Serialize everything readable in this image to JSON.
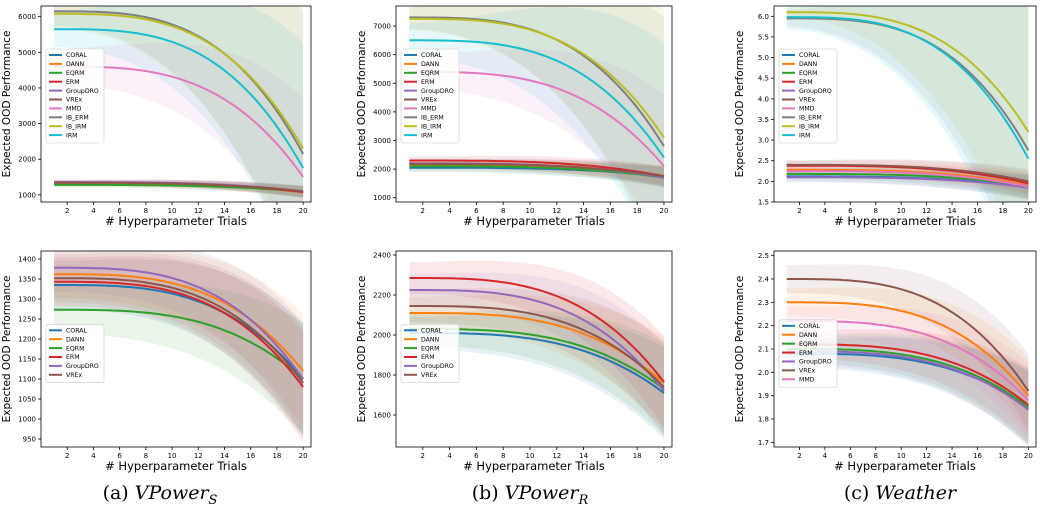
{
  "captions": [
    {
      "label": "(a)",
      "main": "VPower",
      "sub": "S"
    },
    {
      "label": "(b)",
      "main": "VPower",
      "sub": "R"
    },
    {
      "label": "(c)",
      "main": "Weather",
      "sub": ""
    }
  ],
  "colors": {
    "CORAL": "#1f77b4",
    "DANN": "#ff7f0e",
    "EQRM": "#2ca02c",
    "ERM": "#d62728",
    "GroupDRO": "#9467bd",
    "VREx": "#8c564b",
    "MMD": "#e377c2",
    "IB_ERM": "#7f7f7f",
    "IB_IRM": "#bcbd22",
    "IRM": "#17becf"
  },
  "chart_data": [
    {
      "type": "line",
      "xlabel": "# Hyperparameter Trials",
      "ylabel": "Expected OOD Performance",
      "xlim": [
        0,
        20.6
      ],
      "ylim": [
        800,
        6300
      ],
      "xticks": [
        2,
        4,
        6,
        8,
        10,
        12,
        14,
        16,
        18,
        20
      ],
      "yticks": [
        1000,
        2000,
        3000,
        4000,
        5000,
        6000
      ],
      "ytick_labels": [
        "1000",
        "2000",
        "3000",
        "4000",
        "5000",
        "6000"
      ],
      "legend": "left",
      "series": [
        {
          "name": "CORAL",
          "start": 1330,
          "end": 1080,
          "band": [
            70,
            160
          ]
        },
        {
          "name": "DANN",
          "start": 1310,
          "end": 1070,
          "band": [
            70,
            160
          ]
        },
        {
          "name": "EQRM",
          "start": 1280,
          "end": 1090,
          "band": [
            70,
            160
          ]
        },
        {
          "name": "ERM",
          "start": 1350,
          "end": 1080,
          "band": [
            70,
            160
          ]
        },
        {
          "name": "GroupDRO",
          "start": 1360,
          "end": 1100,
          "band": [
            70,
            160
          ]
        },
        {
          "name": "VREx",
          "start": 1340,
          "end": 1100,
          "band": [
            70,
            160
          ]
        },
        {
          "name": "MMD",
          "start": 4600,
          "end": 1500,
          "band": [
            500,
            2200
          ]
        },
        {
          "name": "IB_ERM",
          "start": 6150,
          "end": 2150,
          "band": [
            400,
            4000
          ]
        },
        {
          "name": "IB_IRM",
          "start": 6080,
          "end": 2300,
          "band": [
            400,
            4000
          ]
        },
        {
          "name": "IRM",
          "start": 5650,
          "end": 1750,
          "band": [
            500,
            3500
          ]
        }
      ]
    },
    {
      "type": "line",
      "xlabel": "# Hyperparameter Trials",
      "ylabel": "Expected OOD Performance",
      "xlim": [
        0,
        20.6
      ],
      "ylim": [
        850,
        7700
      ],
      "xticks": [
        2,
        4,
        6,
        8,
        10,
        12,
        14,
        16,
        18,
        20
      ],
      "yticks": [
        1000,
        2000,
        3000,
        4000,
        5000,
        6000,
        7000
      ],
      "ytick_labels": [
        "1000",
        "2000",
        "3000",
        "4000",
        "5000",
        "6000",
        "7000"
      ],
      "legend": "left",
      "series": [
        {
          "name": "CORAL",
          "start": 2050,
          "end": 1750,
          "band": [
            150,
            350
          ]
        },
        {
          "name": "DANN",
          "start": 2150,
          "end": 1760,
          "band": [
            150,
            350
          ]
        },
        {
          "name": "EQRM",
          "start": 2100,
          "end": 1700,
          "band": [
            150,
            350
          ]
        },
        {
          "name": "ERM",
          "start": 2300,
          "end": 1750,
          "band": [
            150,
            350
          ]
        },
        {
          "name": "GroupDRO",
          "start": 2200,
          "end": 1700,
          "band": [
            150,
            350
          ]
        },
        {
          "name": "VREx",
          "start": 2180,
          "end": 1750,
          "band": [
            150,
            350
          ]
        },
        {
          "name": "MMD",
          "start": 5400,
          "end": 2100,
          "band": [
            600,
            2500
          ]
        },
        {
          "name": "IB_ERM",
          "start": 7300,
          "end": 2800,
          "band": [
            400,
            4500
          ]
        },
        {
          "name": "IB_IRM",
          "start": 7250,
          "end": 3100,
          "band": [
            400,
            4500
          ]
        },
        {
          "name": "IRM",
          "start": 6500,
          "end": 2400,
          "band": [
            600,
            4000
          ]
        }
      ]
    },
    {
      "type": "line",
      "xlabel": "# Hyperparameter Trials",
      "ylabel": "Expected OOD Performance",
      "xlim": [
        0,
        20.6
      ],
      "ylim": [
        1.5,
        6.25
      ],
      "xticks": [
        2,
        4,
        6,
        8,
        10,
        12,
        14,
        16,
        18,
        20
      ],
      "yticks": [
        1.5,
        2.0,
        2.5,
        3.0,
        3.5,
        4.0,
        4.5,
        5.0,
        5.5,
        6.0
      ],
      "ytick_labels": [
        "1.5",
        "2.0",
        "2.5",
        "3.0",
        "3.5",
        "4.0",
        "4.5",
        "5.0",
        "5.5",
        "6.0"
      ],
      "legend": "left",
      "series": [
        {
          "name": "CORAL",
          "start": 2.12,
          "end": 1.85,
          "band": [
            0.12,
            0.3
          ]
        },
        {
          "name": "DANN",
          "start": 2.28,
          "end": 1.9,
          "band": [
            0.12,
            0.3
          ]
        },
        {
          "name": "EQRM",
          "start": 2.18,
          "end": 1.88,
          "band": [
            0.12,
            0.3
          ]
        },
        {
          "name": "ERM",
          "start": 2.38,
          "end": 1.95,
          "band": [
            0.12,
            0.3
          ]
        },
        {
          "name": "GroupDRO",
          "start": 2.1,
          "end": 1.85,
          "band": [
            0.12,
            0.3
          ]
        },
        {
          "name": "VREx",
          "start": 2.4,
          "end": 2.0,
          "band": [
            0.12,
            0.3
          ]
        },
        {
          "name": "MMD",
          "start": 2.25,
          "end": 1.87,
          "band": [
            0.12,
            0.3
          ]
        },
        {
          "name": "IB_ERM",
          "start": 5.95,
          "end": 2.75,
          "band": [
            0.2,
            3.5
          ]
        },
        {
          "name": "IB_IRM",
          "start": 6.1,
          "end": 3.2,
          "band": [
            0.1,
            3.5
          ]
        },
        {
          "name": "IRM",
          "start": 5.98,
          "end": 2.55,
          "band": [
            0.3,
            3.7
          ]
        }
      ]
    },
    {
      "type": "line",
      "xlabel": "# Hyperparameter Trials",
      "ylabel": "Expected OOD Performance",
      "xlim": [
        0,
        20.6
      ],
      "ylim": [
        930,
        1420
      ],
      "xticks": [
        2,
        4,
        6,
        8,
        10,
        12,
        14,
        16,
        18,
        20
      ],
      "yticks": [
        950,
        1000,
        1050,
        1100,
        1150,
        1200,
        1250,
        1300,
        1350,
        1400
      ],
      "ytick_labels": [
        "950",
        "1000",
        "1050",
        "1100",
        "1150",
        "1200",
        "1250",
        "1300",
        "1350",
        "1400"
      ],
      "legend": "left",
      "series": [
        {
          "name": "CORAL",
          "start": 1335,
          "end": 1100,
          "band": [
            60,
            140
          ]
        },
        {
          "name": "DANN",
          "start": 1362,
          "end": 1120,
          "band": [
            60,
            140
          ]
        },
        {
          "name": "EQRM",
          "start": 1273,
          "end": 1100,
          "band": [
            60,
            140
          ]
        },
        {
          "name": "ERM",
          "start": 1343,
          "end": 1080,
          "band": [
            60,
            140
          ]
        },
        {
          "name": "GroupDRO",
          "start": 1378,
          "end": 1100,
          "band": [
            60,
            140
          ]
        },
        {
          "name": "VREx",
          "start": 1352,
          "end": 1090,
          "band": [
            60,
            140
          ]
        }
      ]
    },
    {
      "type": "line",
      "xlabel": "# Hyperparameter Trials",
      "ylabel": "Expected OOD Performance",
      "xlim": [
        0,
        20.6
      ],
      "ylim": [
        1440,
        2420
      ],
      "xticks": [
        2,
        4,
        6,
        8,
        10,
        12,
        14,
        16,
        18,
        20
      ],
      "yticks": [
        1600,
        1800,
        2000,
        2200,
        2400
      ],
      "ytick_labels": [
        "1600",
        "1800",
        "2000",
        "2200",
        "2400"
      ],
      "legend": "left",
      "series": [
        {
          "name": "CORAL",
          "start": 2010,
          "end": 1710,
          "band": [
            80,
            230
          ]
        },
        {
          "name": "DANN",
          "start": 2110,
          "end": 1760,
          "band": [
            80,
            230
          ]
        },
        {
          "name": "EQRM",
          "start": 2030,
          "end": 1730,
          "band": [
            80,
            230
          ]
        },
        {
          "name": "ERM",
          "start": 2285,
          "end": 1765,
          "band": [
            80,
            230
          ]
        },
        {
          "name": "GroupDRO",
          "start": 2225,
          "end": 1720,
          "band": [
            80,
            230
          ]
        },
        {
          "name": "VREx",
          "start": 2145,
          "end": 1740,
          "band": [
            80,
            230
          ]
        }
      ]
    },
    {
      "type": "line",
      "xlabel": "# Hyperparameter Trials",
      "ylabel": "Expected OOD Performance",
      "xlim": [
        0,
        20.6
      ],
      "ylim": [
        1.68,
        2.52
      ],
      "xticks": [
        2,
        4,
        6,
        8,
        10,
        12,
        14,
        16,
        18,
        20
      ],
      "yticks": [
        1.7,
        1.8,
        1.9,
        2.0,
        2.1,
        2.2,
        2.3,
        2.4,
        2.5
      ],
      "ytick_labels": [
        "1.7",
        "1.8",
        "1.9",
        "2.0",
        "2.1",
        "2.2",
        "2.3",
        "2.4",
        "2.5"
      ],
      "legend": "left",
      "series": [
        {
          "name": "CORAL",
          "start": 2.08,
          "end": 1.85,
          "band": [
            0.06,
            0.16
          ]
        },
        {
          "name": "DANN",
          "start": 2.3,
          "end": 1.9,
          "band": [
            0.06,
            0.16
          ]
        },
        {
          "name": "EQRM",
          "start": 2.1,
          "end": 1.85,
          "band": [
            0.06,
            0.16
          ]
        },
        {
          "name": "ERM",
          "start": 2.12,
          "end": 1.86,
          "band": [
            0.06,
            0.16
          ]
        },
        {
          "name": "GroupDRO",
          "start": 2.09,
          "end": 1.84,
          "band": [
            0.06,
            0.16
          ]
        },
        {
          "name": "VREx",
          "start": 2.4,
          "end": 1.92,
          "band": [
            0.06,
            0.16
          ]
        },
        {
          "name": "MMD",
          "start": 2.22,
          "end": 1.88,
          "band": [
            0.06,
            0.16
          ]
        }
      ]
    }
  ]
}
